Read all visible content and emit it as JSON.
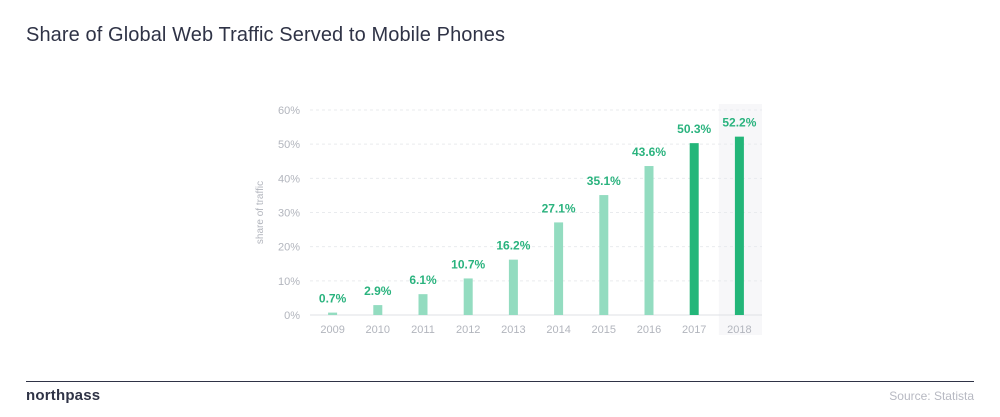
{
  "title": "Share of Global Web Traffic Served to Mobile Phones",
  "footer": {
    "brand": "northpass",
    "source": "Source: Statista"
  },
  "colors": {
    "light_bar": "#93dcc0",
    "dark_bar": "#23b679",
    "label": "#2ab37e",
    "axis_text": "#b2b5bd",
    "grid": "#e9ebee",
    "highlight_bg": "#f7f7f9"
  },
  "chart_data": {
    "type": "bar",
    "title": "Share of Global Web Traffic Served to Mobile Phones",
    "xlabel": "",
    "ylabel": "share of traffic",
    "ylim": [
      0,
      60
    ],
    "yticks": [
      "0%",
      "10%",
      "20%",
      "30%",
      "40%",
      "50%",
      "60%"
    ],
    "categories": [
      "2009",
      "2010",
      "2011",
      "2012",
      "2013",
      "2014",
      "2015",
      "2016",
      "2017",
      "2018"
    ],
    "values": [
      0.7,
      2.9,
      6.1,
      10.7,
      16.2,
      27.1,
      35.1,
      43.6,
      50.3,
      52.2
    ],
    "data_labels": [
      "0.7%",
      "2.9%",
      "6.1%",
      "10.7%",
      "16.2%",
      "27.1%",
      "35.1%",
      "43.6%",
      "50.3%",
      "52.2%"
    ],
    "highlighted": [
      "2017",
      "2018"
    ],
    "grid": true,
    "legend": "none"
  }
}
